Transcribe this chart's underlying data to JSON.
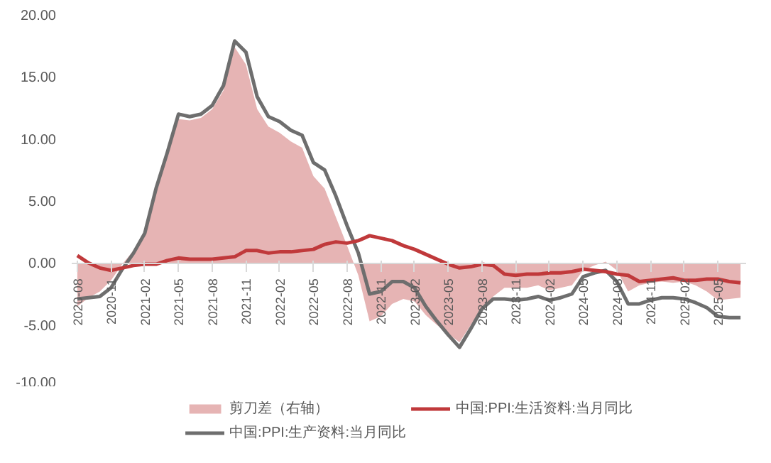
{
  "chart_data": {
    "type": "line",
    "categories": [
      "2020-08",
      null,
      null,
      "2020-11",
      null,
      null,
      "2021-02",
      null,
      null,
      "2021-05",
      null,
      null,
      "2021-08",
      null,
      null,
      "2021-11",
      null,
      null,
      "2022-02",
      null,
      null,
      "2022-05",
      null,
      null,
      "2022-08",
      null,
      null,
      "2022-11",
      null,
      null,
      "2023-02",
      null,
      null,
      "2023-05",
      null,
      null,
      "2023-08",
      null,
      null,
      "2023-11",
      null,
      null,
      "2024-02",
      null,
      null,
      "2024-05",
      null,
      null,
      "2024-08",
      null,
      null,
      "2024-11",
      null,
      null,
      "2025-02",
      null,
      null,
      "2025-05",
      null,
      null
    ],
    "series": [
      {
        "name": "剪刀差（右轴）",
        "type": "area",
        "color": "#e6b4b4",
        "values": [
          -3.5,
          -2.8,
          -2.3,
          -1.4,
          -0.1,
          1.0,
          2.5,
          6.1,
          8.7,
          11.6,
          11.5,
          11.7,
          12.4,
          13.9,
          17.4,
          16.0,
          12.4,
          11.0,
          10.5,
          9.8,
          9.3,
          7.0,
          6.0,
          3.7,
          1.4,
          -1.0,
          -4.7,
          -4.3,
          -3.3,
          -2.9,
          -3.1,
          -4.2,
          -5.0,
          -5.7,
          -6.4,
          -5.0,
          -3.6,
          -2.7,
          -2.0,
          -2.0,
          -2.0,
          -1.8,
          -2.2,
          -2.0,
          -1.8,
          -0.6,
          -0.2,
          0.1,
          -0.6,
          -2.3,
          -1.8,
          -1.6,
          -1.5,
          -1.6,
          -1.5,
          -1.8,
          -2.3,
          -3.0,
          -2.9,
          -2.8
        ]
      },
      {
        "name": "中国:PPI:生产资料:当月同比",
        "color": "#6e6e6e",
        "values": [
          -2.9,
          -2.8,
          -2.7,
          -2.0,
          -0.5,
          0.8,
          2.4,
          6.0,
          8.9,
          12.0,
          11.8,
          12.0,
          12.7,
          14.3,
          17.9,
          17.0,
          13.4,
          11.8,
          11.4,
          10.7,
          10.3,
          8.1,
          7.5,
          5.4,
          3.0,
          0.8,
          -2.5,
          -2.3,
          -1.5,
          -1.5,
          -2.0,
          -3.5,
          -4.7,
          -5.8,
          -6.8,
          -5.3,
          -3.7,
          -2.9,
          -2.9,
          -3.0,
          -2.9,
          -2.7,
          -3.0,
          -2.8,
          -2.5,
          -1.1,
          -0.8,
          -0.6,
          -1.5,
          -3.3,
          -3.3,
          -3.0,
          -2.8,
          -2.8,
          -2.9,
          -3.2,
          -3.6,
          -4.3,
          -4.4,
          -4.4
        ]
      },
      {
        "name": "中国:PPI:生活资料:当月同比",
        "color": "#c0393b",
        "values": [
          0.6,
          0.0,
          -0.4,
          -0.6,
          -0.4,
          -0.2,
          -0.1,
          -0.1,
          0.2,
          0.4,
          0.3,
          0.3,
          0.3,
          0.4,
          0.5,
          1.0,
          1.0,
          0.8,
          0.9,
          0.9,
          1.0,
          1.1,
          1.5,
          1.7,
          1.6,
          1.8,
          2.2,
          2.0,
          1.8,
          1.4,
          1.1,
          0.7,
          0.3,
          -0.1,
          -0.4,
          -0.3,
          -0.1,
          -0.2,
          -0.9,
          -1.0,
          -0.9,
          -0.9,
          -0.8,
          -0.8,
          -0.7,
          -0.5,
          -0.6,
          -0.7,
          -0.9,
          -1.0,
          -1.5,
          -1.4,
          -1.3,
          -1.2,
          -1.4,
          -1.4,
          -1.3,
          -1.3,
          -1.5,
          -1.6
        ]
      }
    ],
    "ylim": [
      -10,
      20
    ],
    "yticks": [
      {
        "value": -10,
        "label": "-10.00"
      },
      {
        "value": -5,
        "label": "-5.00"
      },
      {
        "value": 0,
        "label": "0.00"
      },
      {
        "value": 5,
        "label": "5.00"
      },
      {
        "value": 10,
        "label": "10.00"
      },
      {
        "value": 15,
        "label": "15.00"
      },
      {
        "value": 20,
        "label": "20.00"
      }
    ],
    "grid": false,
    "legend": "bottom"
  }
}
